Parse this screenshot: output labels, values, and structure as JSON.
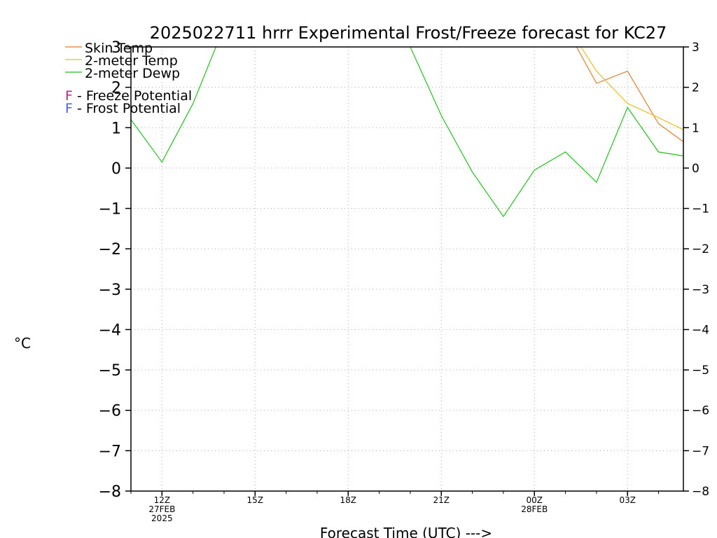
{
  "chart_data": {
    "type": "line",
    "title": "2025022711 hrrr Experimental Frost/Freeze forecast for KC27",
    "xlabel": "Forecast Time (UTC) --->",
    "ylabel": "°C",
    "ylim": [
      -8,
      3
    ],
    "xlim": [
      11,
      28
    ],
    "grid": true,
    "y_ticks": [
      "−8",
      "−7",
      "−6",
      "−5",
      "−4",
      "−3",
      "−2",
      "−1",
      "0",
      "1",
      "2",
      "3"
    ],
    "x_ticks": [
      {
        "x": 12,
        "label": "12Z",
        "sub": [
          "27FEB",
          "2025"
        ]
      },
      {
        "x": 15,
        "label": "15Z",
        "sub": []
      },
      {
        "x": 18,
        "label": "18Z",
        "sub": []
      },
      {
        "x": 21,
        "label": "21Z",
        "sub": []
      },
      {
        "x": 24,
        "label": "00Z",
        "sub": [
          "28FEB"
        ]
      },
      {
        "x": 27,
        "label": "03Z",
        "sub": []
      }
    ],
    "legend_lines": [
      {
        "label": "Skin Temp",
        "color": "#e07b2a"
      },
      {
        "label": "2-meter Temp",
        "color": "#e8c020"
      },
      {
        "label": "2-meter Dewp",
        "color": "#22c01e"
      }
    ],
    "legend_potential": [
      {
        "letter": "F",
        "text": " - Freeze Potential",
        "color": "#c0209a"
      },
      {
        "letter": "F",
        "text": " - Frost Potential",
        "color": "#4a5ef0"
      }
    ],
    "series": [
      {
        "name": "Skin Temp",
        "color": "#e07b2a",
        "x": [
          25,
          26,
          27,
          28,
          28.8
        ],
        "y": [
          3.5,
          2.1,
          2.4,
          1.1,
          0.65
        ]
      },
      {
        "name": "2-meter Temp",
        "color": "#e8c020",
        "x": [
          25,
          26,
          27,
          28,
          28.8
        ],
        "y": [
          3.6,
          2.4,
          1.6,
          1.25,
          0.95
        ]
      },
      {
        "name": "2-meter Dewp",
        "color": "#22c01e",
        "x": [
          11,
          12,
          13,
          14,
          19,
          20,
          21,
          22,
          23,
          24,
          25,
          26,
          27,
          28,
          28.8
        ],
        "y": [
          1.2,
          0.15,
          1.6,
          3.5,
          3.6,
          3.0,
          1.3,
          -0.1,
          -1.2,
          -0.05,
          0.4,
          -0.35,
          1.5,
          0.4,
          0.3
        ]
      }
    ]
  }
}
